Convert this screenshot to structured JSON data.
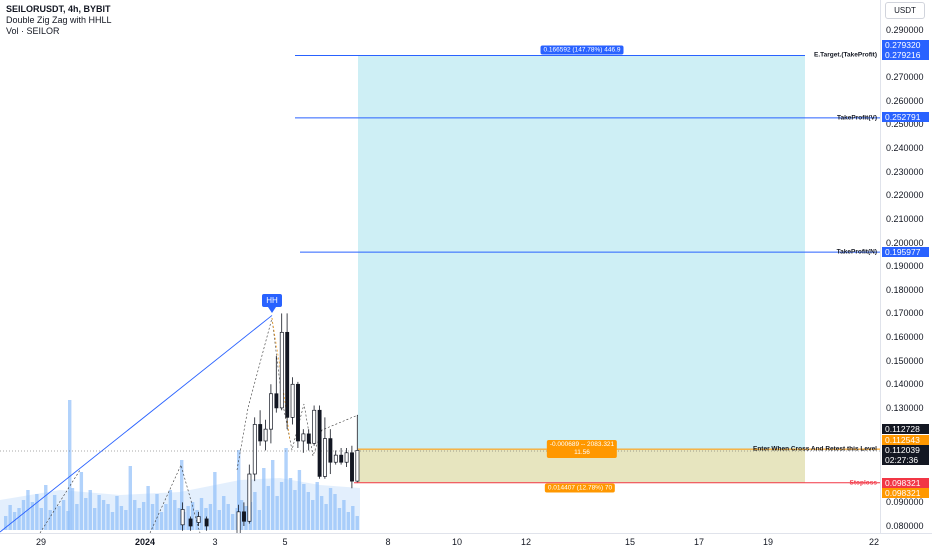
{
  "legend": {
    "symbol": "SEILORUSDT, 4h, BYBIT",
    "indicator": "Double Zig Zag with HHLL",
    "volume": "Vol · SEILOR"
  },
  "currency_button": "USDT",
  "price_axis_ticks": [
    "0.290000",
    "0.270000",
    "0.260000",
    "0.250000",
    "0.240000",
    "0.230000",
    "0.220000",
    "0.210000",
    "0.200000",
    "0.190000",
    "0.180000",
    "0.170000",
    "0.160000",
    "0.150000",
    "0.140000",
    "0.130000",
    "0.090000",
    "0.080000"
  ],
  "price_labels": {
    "etarget_high": "0.279320",
    "etarget": "0.279216",
    "takeprofit_v": "0.252791",
    "takeprofit_n": "0.195977",
    "current_high": "0.112728",
    "entry": "0.112543",
    "current": "0.112039",
    "countdown": "02:27:36",
    "stoploss": "0.098321",
    "stoploss2": "0.098321"
  },
  "annotations": {
    "etarget": "E.Target.(TakeProfit)",
    "takeprofit_v": "TakeProfit(V)",
    "takeprofit_n": "TakeProfit(N)",
    "entry": "Enter When Cross And Retest this Level",
    "stoploss": "Stoploss",
    "hh": "HH"
  },
  "position_tool": {
    "target_info": "0.166592 (147.78%) 446.9",
    "entry_info_line1": "-0.000689 -- 2083.321",
    "entry_info_line2": "11.56",
    "stop_info": "0.014407 (12.78%) 70"
  },
  "time_axis": [
    "29",
    "2024",
    "3",
    "5",
    "8",
    "10",
    "12",
    "15",
    "17",
    "19",
    "22"
  ],
  "colors": {
    "up": "#ffffff",
    "down": "#131722",
    "target_zone": "#c6ecf3",
    "stop_zone": "#e3e1b4",
    "blue_line": "#2962ff",
    "red_line": "#f23645",
    "orange": "#ff9800",
    "volume": "#90bff9"
  },
  "chart_data": {
    "type": "candlestick",
    "symbol": "SEILORUSDT",
    "interval": "4h",
    "exchange": "BYBIT",
    "candles": [
      {
        "o": 0.06,
        "h": 0.089,
        "l": 0.058,
        "c": 0.086
      },
      {
        "o": 0.086,
        "h": 0.09,
        "l": 0.08,
        "c": 0.082
      },
      {
        "o": 0.082,
        "h": 0.106,
        "l": 0.081,
        "c": 0.102
      },
      {
        "o": 0.102,
        "h": 0.126,
        "l": 0.099,
        "c": 0.123
      },
      {
        "o": 0.123,
        "h": 0.129,
        "l": 0.114,
        "c": 0.116
      },
      {
        "o": 0.116,
        "h": 0.125,
        "l": 0.112,
        "c": 0.121
      },
      {
        "o": 0.121,
        "h": 0.14,
        "l": 0.115,
        "c": 0.136
      },
      {
        "o": 0.136,
        "h": 0.152,
        "l": 0.128,
        "c": 0.13
      },
      {
        "o": 0.13,
        "h": 0.17,
        "l": 0.129,
        "c": 0.162
      },
      {
        "o": 0.162,
        "h": 0.17,
        "l": 0.121,
        "c": 0.126
      },
      {
        "o": 0.126,
        "h": 0.143,
        "l": 0.123,
        "c": 0.14
      },
      {
        "o": 0.14,
        "h": 0.141,
        "l": 0.113,
        "c": 0.116
      },
      {
        "o": 0.116,
        "h": 0.121,
        "l": 0.111,
        "c": 0.119
      },
      {
        "o": 0.119,
        "h": 0.121,
        "l": 0.112,
        "c": 0.115
      },
      {
        "o": 0.115,
        "h": 0.131,
        "l": 0.114,
        "c": 0.129
      },
      {
        "o": 0.129,
        "h": 0.131,
        "l": 0.1,
        "c": 0.101
      },
      {
        "o": 0.101,
        "h": 0.126,
        "l": 0.1,
        "c": 0.117
      },
      {
        "o": 0.117,
        "h": 0.121,
        "l": 0.102,
        "c": 0.107
      },
      {
        "o": 0.107,
        "h": 0.112,
        "l": 0.106,
        "c": 0.11
      },
      {
        "o": 0.11,
        "h": 0.113,
        "l": 0.106,
        "c": 0.107
      },
      {
        "o": 0.107,
        "h": 0.113,
        "l": 0.105,
        "c": 0.111
      },
      {
        "o": 0.111,
        "h": 0.114,
        "l": 0.096,
        "c": 0.099
      },
      {
        "o": 0.099,
        "h": 0.127,
        "l": 0.0985,
        "c": 0.112
      }
    ],
    "levels": {
      "etarget": 0.279216,
      "takeprofit_v": 0.252791,
      "takeprofit_n": 0.195977,
      "entry": 0.112543,
      "stoploss": 0.098321,
      "hh": 0.17
    },
    "ylim": [
      0.0775,
      0.2965
    ]
  }
}
